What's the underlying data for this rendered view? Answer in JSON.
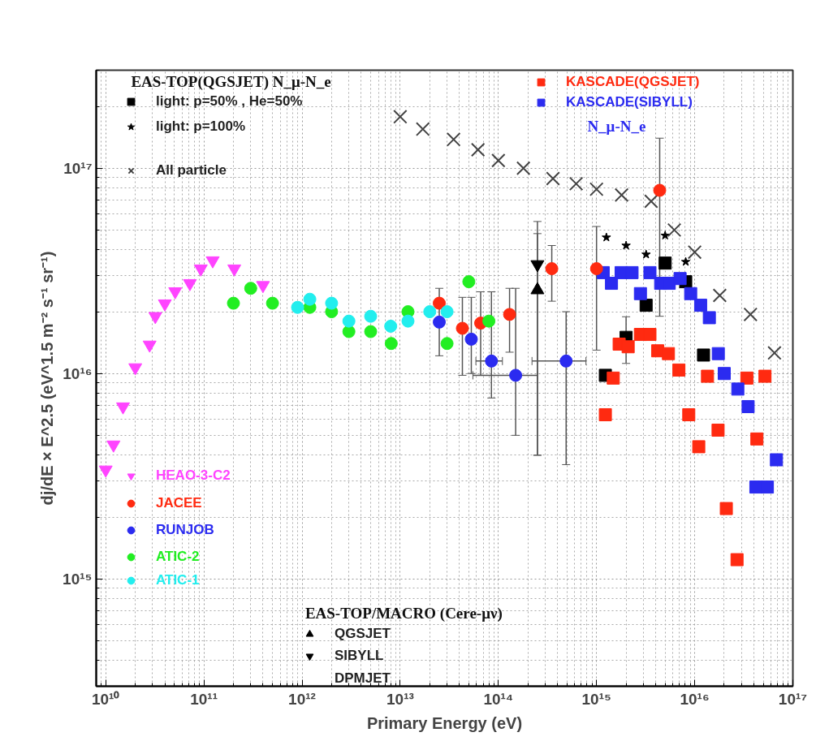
{
  "chart_data": {
    "type": "scatter",
    "xlabel": "Primary Energy (eV)",
    "ylabel": "dj/dE × E^2.5 (eV^1.5 m⁻² s⁻¹ sr⁻¹)",
    "xlim": [
      8000000000.0,
      1e+17
    ],
    "ylim": [
      300000000000000.0,
      3e+17
    ],
    "log": "xy",
    "grid": true,
    "legend": "top left",
    "xticks": [
      {
        "value": 10000000000.0,
        "label": "10¹⁰"
      },
      {
        "value": 100000000000.0,
        "label": "10¹¹"
      },
      {
        "value": 1000000000000.0,
        "label": "10¹²"
      },
      {
        "value": 10000000000000.0,
        "label": "10¹³"
      },
      {
        "value": 100000000000000.0,
        "label": "10¹⁴"
      },
      {
        "value": 1000000000000000.0,
        "label": "10¹⁵"
      },
      {
        "value": 1e+16,
        "label": "10¹⁶"
      },
      {
        "value": 1e+17,
        "label": "10¹⁷"
      }
    ],
    "yticks": [
      {
        "value": 1000000000000000.0,
        "label": "10¹⁵"
      },
      {
        "value": 1e+16,
        "label": "10¹⁶"
      },
      {
        "value": 1e+17,
        "label": "10¹⁷"
      }
    ],
    "annotations": [
      "EAS-TOP(QGSJET) N_μ-N_e",
      "N_μ-N_e",
      "EAS-TOP/MACRO (Cere-μν)"
    ],
    "series": [
      {
        "name": "light: p=50% , He=50%",
        "color": "#000000",
        "marker": "square",
        "x": [
          1230000000000000.0,
          2000000000000000.0,
          3200000000000000.0,
          5000000000000000.0,
          8100000000000000.0,
          1.23e+16
        ],
        "values": [
          9800000000000000.0,
          1.5e+16,
          2.15e+16,
          3.45e+16,
          2.8e+16,
          1.23e+16
        ],
        "errors": [
          null,
          [
            1.12e+16,
            1.89e+16
          ],
          null,
          null,
          null,
          null
        ]
      },
      {
        "name": "light: p=100%",
        "color": "#000000",
        "marker": "star",
        "x": [
          1260000000000000.0,
          2000000000000000.0,
          3200000000000000.0,
          5000000000000000.0,
          8100000000000000.0
        ],
        "values": [
          4.6e+16,
          4.2e+16,
          3.8e+16,
          4.7e+16,
          3.5e+16
        ]
      },
      {
        "name": "All particle",
        "color": "#444444",
        "marker": "cross",
        "x": [
          10000000000000.0,
          17000000000000.0,
          35000000000000.0,
          62000000000000.0,
          100000000000000.0,
          180000000000000.0,
          360000000000000.0,
          620000000000000.0,
          1000000000000000.0,
          1800000000000000.0,
          3600000000000000.0,
          6200000000000000.0,
          1e+16,
          1.8e+16,
          3.7e+16,
          6.5e+16
        ],
        "values": [
          1.78e+17,
          1.55e+17,
          1.38e+17,
          1.23e+17,
          1.09e+17,
          1e+17,
          8.9e+16,
          8.4e+16,
          7.9e+16,
          7.4e+16,
          6.9e+16,
          5e+16,
          3.9e+16,
          2.4e+16,
          1.94e+16,
          1.26e+16
        ]
      },
      {
        "name": "KASCADE(QGSJET)",
        "color": "#ff2a10",
        "marker": "square",
        "x": [
          1230000000000000.0,
          1480000000000000.0,
          1700000000000000.0,
          2100000000000000.0,
          2800000000000000.0,
          3500000000000000.0,
          4200000000000000.0,
          5400000000000000.0,
          6900000000000000.0,
          8700000000000000.0,
          1.1e+16,
          1.35e+16,
          1.73e+16,
          2.1e+16,
          2.7e+16,
          3.4e+16,
          4.3e+16,
          5.2e+16
        ],
        "values": [
          6300000000000000.0,
          9500000000000000.0,
          1.39e+16,
          1.35e+16,
          1.55e+16,
          1.55e+16,
          1.29e+16,
          1.25e+16,
          1.04e+16,
          6300000000000000.0,
          4400000000000000.0,
          9700000000000000.0,
          5300000000000000.0,
          2200000000000000.0,
          1240000000000000.0,
          9500000000000000.0,
          4800000000000000.0,
          9700000000000000.0
        ]
      },
      {
        "name": "KASCADE(SIBYLL)",
        "color": "#2b2bf0",
        "marker": "square",
        "x": [
          1170000000000000.0,
          1420000000000000.0,
          1780000000000000.0,
          2300000000000000.0,
          2800000000000000.0,
          3500000000000000.0,
          4500000000000000.0,
          5500000000000000.0,
          7100000000000000.0,
          9100000000000000.0,
          1.15e+16,
          1.41e+16,
          1.74e+16,
          2e+16,
          2.75e+16,
          3.5e+16,
          4.2e+16,
          5.5e+16,
          6.8e+16
        ],
        "values": [
          3.1e+16,
          2.75e+16,
          3.1e+16,
          3.1e+16,
          2.45e+16,
          3.1e+16,
          2.75e+16,
          2.75e+16,
          2.9e+16,
          2.45e+16,
          2.15e+16,
          1.87e+16,
          1.25e+16,
          1e+16,
          8400000000000000.0,
          6900000000000000.0,
          2800000000000000.0,
          2800000000000000.0,
          3800000000000000.0
        ]
      },
      {
        "name": "HEAO-3-C2",
        "color": "#ff44ff",
        "marker": "triangle_down",
        "x": [
          10000000000.0,
          12000000000.0,
          15000000000.0,
          20000000000.0,
          28000000000.0,
          32000000000.0,
          40000000000.0,
          51000000000.0,
          72000000000.0,
          93000000000.0,
          123000000000.0,
          204000000000.0,
          400000000000.0
        ],
        "values": [
          3400000000000000.0,
          4500000000000000.0,
          6900000000000000.0,
          1.07e+16,
          1.38e+16,
          1.9e+16,
          2.19e+16,
          2.51e+16,
          2.75e+16,
          3.24e+16,
          3.55e+16,
          3.24e+16,
          2.69e+16
        ]
      },
      {
        "name": "JACEE",
        "color": "#ff2a10",
        "marker": "circle",
        "x": [
          25000000000000.0,
          43000000000000.0,
          66000000000000.0,
          130000000000000.0,
          350000000000000.0,
          1000000000000000.0,
          4400000000000000.0
        ],
        "values": [
          2.2e+16,
          1.66e+16,
          1.76e+16,
          1.94e+16,
          3.24e+16,
          3.24e+16,
          7.8e+16
        ],
        "errors": [
          [
            1.22e+16,
            2.6e+16
          ],
          [
            9800000000000000.0,
            2.35e+16
          ],
          [
            9800000000000000.0,
            2.5e+16
          ],
          [
            1.27e+16,
            2.6e+16
          ],
          [
            2.25e+16,
            4.2e+16
          ],
          [
            1.3e+16,
            5.2e+16
          ],
          [
            1.9e+16,
            1.4e+17
          ]
        ]
      },
      {
        "name": "RUNJOB",
        "color": "#2b2bf0",
        "marker": "circle",
        "x": [
          25000000000000.0,
          53000000000000.0,
          85000000000000.0,
          150000000000000.0,
          490000000000000.0
        ],
        "values": [
          1.78e+16,
          1.47e+16,
          1.15e+16,
          9800000000000000.0,
          1.15e+16
        ],
        "errors": [
          null,
          [
            1e+16,
            2.35e+16
          ],
          [
            7600000000000000.0,
            2.5e+16
          ],
          [
            5000000000000000.0,
            2.6e+16
          ],
          [
            3600000000000000.0,
            2e+16
          ]
        ],
        "xerrors": [
          null,
          null,
          [
            59000000000000.0,
            110000000000000.0
          ],
          [
            55000000000000.0,
            250000000000000.0
          ],
          [
            220000000000000.0,
            780000000000000.0
          ]
        ]
      },
      {
        "name": "ATIC-2",
        "color": "#22ee22",
        "marker": "circle",
        "x": [
          200000000000.0,
          300000000000.0,
          500000000000.0,
          1200000000000.0,
          2000000000000.0,
          3000000000000.0,
          5000000000000.0,
          8100000000000.0,
          12000000000000.0,
          30000000000000.0,
          50000000000000.0,
          80000000000000.0
        ],
        "values": [
          2.2e+16,
          2.6e+16,
          2.2e+16,
          2.1e+16,
          2e+16,
          1.6e+16,
          1.6e+16,
          1.4e+16,
          2e+16,
          1.4e+16,
          2.8e+16,
          1.8e+16
        ]
      },
      {
        "name": "ATIC-1",
        "color": "#22eeee",
        "marker": "circle",
        "x": [
          900000000000.0,
          1200000000000.0,
          2000000000000.0,
          3000000000000.0,
          5000000000000.0,
          8000000000000.0,
          12000000000000.0,
          20000000000000.0,
          30000000000000.0
        ],
        "values": [
          2.1e+16,
          2.3e+16,
          2.2e+16,
          1.8e+16,
          1.9e+16,
          1.7e+16,
          1.8e+16,
          2e+16,
          2e+16
        ]
      },
      {
        "name": "QGSJET",
        "color": "#000000",
        "marker": "triangle",
        "x": [
          250000000000000.0
        ],
        "values": [
          2.55e+16
        ],
        "errors": [
          [
            4000000000000000.0,
            4.8e+16
          ]
        ]
      },
      {
        "name": "SIBYLL",
        "color": "#000000",
        "marker": "triangle_down",
        "x": [
          250000000000000.0
        ],
        "values": [
          3.4e+16
        ],
        "errors": [
          [
            4000000000000000.0,
            5.5e+16
          ]
        ]
      },
      {
        "name": "DPMJET",
        "color": "#000000",
        "marker": "circle"
      }
    ]
  }
}
